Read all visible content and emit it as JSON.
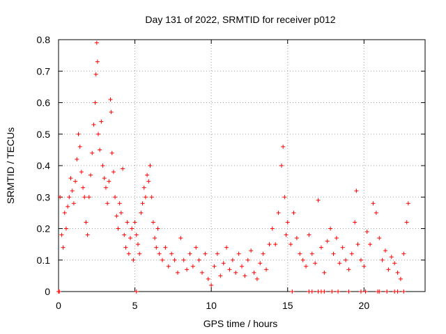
{
  "chart_data": {
    "type": "scatter",
    "title": "Day 131 of 2022, SRMTID for receiver p012",
    "xlabel": "GPS time / hours",
    "ylabel": "SRMTID / TECUs",
    "xlim": [
      0,
      24
    ],
    "ylim": [
      0,
      0.8
    ],
    "x_ticks": [
      "0",
      "5",
      "10",
      "15",
      "20"
    ],
    "y_ticks": [
      "0",
      "0.1",
      "0.2",
      "0.3",
      "0.4",
      "0.5",
      "0.6",
      "0.7",
      "0.8"
    ],
    "grid": true,
    "marker": "plus",
    "color": "#ff0000",
    "series": [
      {
        "name": "SRMTID",
        "points": [
          [
            0.0,
            0.0
          ],
          [
            0.1,
            0.3
          ],
          [
            0.2,
            0.18
          ],
          [
            0.3,
            0.14
          ],
          [
            0.4,
            0.25
          ],
          [
            0.5,
            0.2
          ],
          [
            0.6,
            0.27
          ],
          [
            0.7,
            0.3
          ],
          [
            0.8,
            0.36
          ],
          [
            0.9,
            0.32
          ],
          [
            1.0,
            0.28
          ],
          [
            1.1,
            0.35
          ],
          [
            1.2,
            0.42
          ],
          [
            1.3,
            0.5
          ],
          [
            1.4,
            0.46
          ],
          [
            1.5,
            0.38
          ],
          [
            1.6,
            0.33
          ],
          [
            1.7,
            0.3
          ],
          [
            1.8,
            0.22
          ],
          [
            1.9,
            0.18
          ],
          [
            2.0,
            0.3
          ],
          [
            2.1,
            0.37
          ],
          [
            2.2,
            0.44
          ],
          [
            2.3,
            0.53
          ],
          [
            2.4,
            0.6
          ],
          [
            2.45,
            0.69
          ],
          [
            2.5,
            0.79
          ],
          [
            2.55,
            0.73
          ],
          [
            2.6,
            0.5
          ],
          [
            2.7,
            0.45
          ],
          [
            2.8,
            0.54
          ],
          [
            2.9,
            0.4
          ],
          [
            3.0,
            0.36
          ],
          [
            3.1,
            0.33
          ],
          [
            3.2,
            0.28
          ],
          [
            3.3,
            0.35
          ],
          [
            3.4,
            0.61
          ],
          [
            3.45,
            0.57
          ],
          [
            3.5,
            0.44
          ],
          [
            3.6,
            0.38
          ],
          [
            3.7,
            0.3
          ],
          [
            3.8,
            0.24
          ],
          [
            3.9,
            0.2
          ],
          [
            4.0,
            0.28
          ],
          [
            4.1,
            0.25
          ],
          [
            4.2,
            0.39
          ],
          [
            4.3,
            0.18
          ],
          [
            4.4,
            0.14
          ],
          [
            4.5,
            0.22
          ],
          [
            4.6,
            0.12
          ],
          [
            4.7,
            0.17
          ],
          [
            4.8,
            0.2
          ],
          [
            4.9,
            0.1
          ],
          [
            5.0,
            0.22
          ],
          [
            5.1,
            0.18
          ],
          [
            5.2,
            0.15
          ],
          [
            5.3,
            0.12
          ],
          [
            5.4,
            0.25
          ],
          [
            5.5,
            0.28
          ],
          [
            5.6,
            0.33
          ],
          [
            5.7,
            0.3
          ],
          [
            5.8,
            0.37
          ],
          [
            5.9,
            0.35
          ],
          [
            6.0,
            0.4
          ],
          [
            6.1,
            0.3
          ],
          [
            6.2,
            0.22
          ],
          [
            6.3,
            0.17
          ],
          [
            6.4,
            0.14
          ],
          [
            6.5,
            0.2
          ],
          [
            6.6,
            0.12
          ],
          [
            6.8,
            0.1
          ],
          [
            7.0,
            0.14
          ],
          [
            7.2,
            0.08
          ],
          [
            7.4,
            0.12
          ],
          [
            7.6,
            0.1
          ],
          [
            7.8,
            0.06
          ],
          [
            8.0,
            0.17
          ],
          [
            8.2,
            0.1
          ],
          [
            8.4,
            0.07
          ],
          [
            8.6,
            0.12
          ],
          [
            8.8,
            0.08
          ],
          [
            9.0,
            0.14
          ],
          [
            9.2,
            0.1
          ],
          [
            9.4,
            0.06
          ],
          [
            9.6,
            0.12
          ],
          [
            9.8,
            0.04
          ],
          [
            10.0,
            0.02
          ],
          [
            10.2,
            0.08
          ],
          [
            10.4,
            0.12
          ],
          [
            10.6,
            0.05
          ],
          [
            10.8,
            0.09
          ],
          [
            11.0,
            0.14
          ],
          [
            11.2,
            0.07
          ],
          [
            11.4,
            0.1
          ],
          [
            11.6,
            0.06
          ],
          [
            11.8,
            0.12
          ],
          [
            12.0,
            0.08
          ],
          [
            12.2,
            0.05
          ],
          [
            12.4,
            0.1
          ],
          [
            12.6,
            0.13
          ],
          [
            12.8,
            0.06
          ],
          [
            13.0,
            0.04
          ],
          [
            13.2,
            0.09
          ],
          [
            13.4,
            0.12
          ],
          [
            13.6,
            0.07
          ],
          [
            13.8,
            0.15
          ],
          [
            14.0,
            0.2
          ],
          [
            14.2,
            0.15
          ],
          [
            14.4,
            0.25
          ],
          [
            14.6,
            0.4
          ],
          [
            14.7,
            0.46
          ],
          [
            14.8,
            0.3
          ],
          [
            14.9,
            0.18
          ],
          [
            15.0,
            0.22
          ],
          [
            15.2,
            0.15
          ],
          [
            15.4,
            0.25
          ],
          [
            15.6,
            0.17
          ],
          [
            15.8,
            0.12
          ],
          [
            16.0,
            0.1
          ],
          [
            16.2,
            0.08
          ],
          [
            16.4,
            0.18
          ],
          [
            16.6,
            0.12
          ],
          [
            16.8,
            0.09
          ],
          [
            17.0,
            0.29
          ],
          [
            17.2,
            0.14
          ],
          [
            17.4,
            0.06
          ],
          [
            17.6,
            0.16
          ],
          [
            17.8,
            0.2
          ],
          [
            18.0,
            0.12
          ],
          [
            18.2,
            0.17
          ],
          [
            18.4,
            0.09
          ],
          [
            18.6,
            0.14
          ],
          [
            18.8,
            0.1
          ],
          [
            19.0,
            0.07
          ],
          [
            19.2,
            0.12
          ],
          [
            19.4,
            0.22
          ],
          [
            19.5,
            0.32
          ],
          [
            19.6,
            0.15
          ],
          [
            19.8,
            0.1
          ],
          [
            20.0,
            0.08
          ],
          [
            20.2,
            0.19
          ],
          [
            20.4,
            0.15
          ],
          [
            20.6,
            0.28
          ],
          [
            20.8,
            0.25
          ],
          [
            21.0,
            0.17
          ],
          [
            21.2,
            0.1
          ],
          [
            21.4,
            0.13
          ],
          [
            21.6,
            0.07
          ],
          [
            21.8,
            0.11
          ],
          [
            22.0,
            0.09
          ],
          [
            22.2,
            0.06
          ],
          [
            22.4,
            0.04
          ],
          [
            22.6,
            0.12
          ],
          [
            22.8,
            0.22
          ],
          [
            22.9,
            0.28
          ],
          [
            15.3,
            0.0
          ],
          [
            16.4,
            0.0
          ],
          [
            16.6,
            0.0
          ],
          [
            17.0,
            0.0
          ],
          [
            17.2,
            0.0
          ],
          [
            17.4,
            0.0
          ],
          [
            17.9,
            0.0
          ],
          [
            18.3,
            0.0
          ],
          [
            19.0,
            0.0
          ],
          [
            19.8,
            0.0
          ],
          [
            20.1,
            0.0
          ],
          [
            20.9,
            0.0
          ],
          [
            21.0,
            0.0
          ],
          [
            21.5,
            0.0
          ],
          [
            22.0,
            0.0
          ],
          [
            22.2,
            0.0
          ],
          [
            22.6,
            0.0
          ],
          [
            5.1,
            0.0
          ],
          [
            0.05,
            0.0
          ]
        ]
      }
    ]
  }
}
